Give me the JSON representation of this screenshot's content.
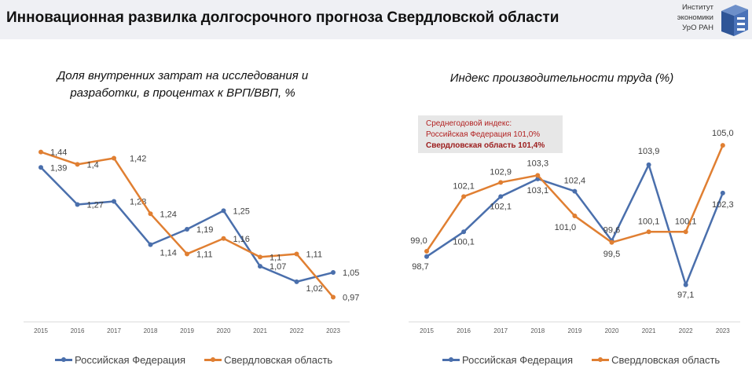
{
  "header": {
    "title": "Инновационная развилка долгосрочного прогноза Свердловской области",
    "logo_lines": [
      "Институт",
      "экономики",
      "УрО РАН"
    ]
  },
  "colors": {
    "rf": "#4a6fac",
    "sv": "#e07f32",
    "box_text": "#b22222"
  },
  "summary_box": {
    "line1": "Среднегодовой индекс:",
    "line2": "Российская Федерация 101,0%",
    "line3": "Свердловская область 101,4%"
  },
  "chart_data": [
    {
      "type": "line",
      "title_line1": "Доля внутренних затрат на исследования и",
      "title_line2": "разработки, в процентах к ВРП/ВВП,  %",
      "categories": [
        "2015",
        "2016",
        "2017",
        "2018",
        "2019",
        "2020",
        "2021",
        "2022",
        "2023"
      ],
      "series": [
        {
          "name": "Российская Федерация",
          "values": [
            1.39,
            1.27,
            1.28,
            1.14,
            1.19,
            1.25,
            1.07,
            1.02,
            1.05
          ],
          "labels": [
            "1,39",
            "1,27",
            "1,28",
            "1,14",
            "1,19",
            "1,25",
            "1,07",
            "1,02",
            "1,05"
          ]
        },
        {
          "name": "Свердловская область",
          "values": [
            1.44,
            1.4,
            1.42,
            1.24,
            1.11,
            1.16,
            1.1,
            1.11,
            0.97
          ],
          "labels": [
            "1,44",
            "1,4",
            "1,42",
            "1,24",
            "1,11",
            "1,16",
            "1,1",
            "1,11",
            "0,97"
          ]
        }
      ],
      "ylim": [
        0.89,
        1.5
      ],
      "grid": false,
      "legend": "bottom"
    },
    {
      "type": "line",
      "title_line1": "Индекс производительности труда (%)",
      "categories": [
        "2015",
        "2016",
        "2017",
        "2018",
        "2019",
        "2020",
        "2021",
        "2022",
        "2023"
      ],
      "series": [
        {
          "name": "Российская Федерация",
          "values": [
            98.7,
            100.1,
            102.1,
            103.1,
            102.4,
            99.6,
            103.9,
            97.1,
            102.3
          ],
          "labels": [
            "98,7",
            "100,1",
            "102,1",
            "103,1",
            "102,4",
            "99,6",
            "103,9",
            "97,1",
            "102,3"
          ]
        },
        {
          "name": "Свердловская область",
          "values": [
            99.0,
            102.1,
            102.9,
            103.3,
            101.0,
            99.5,
            100.1,
            100.1,
            105.0
          ],
          "labels": [
            "99,0",
            "102,1",
            "102,9",
            "103,3",
            "101,0",
            "99,5",
            "100,1",
            "100,1",
            "105,0"
          ]
        }
      ],
      "ylim": [
        95,
        106
      ],
      "grid": false,
      "legend": "bottom"
    }
  ]
}
